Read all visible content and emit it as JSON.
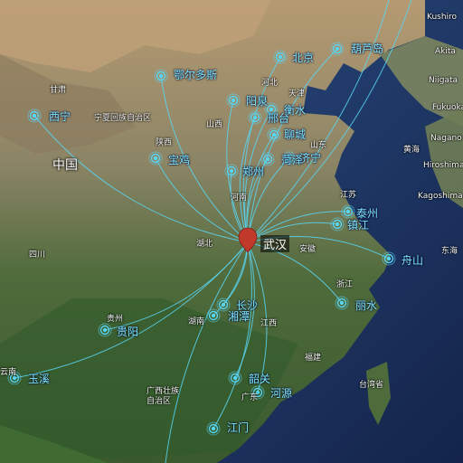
{
  "hub": {
    "name": "武汉",
    "color": "#c0392b"
  },
  "line_color": "#59d6f5",
  "cities": [
    {
      "name": "西宁"
    },
    {
      "name": "鄂尔多斯"
    },
    {
      "name": "北京"
    },
    {
      "name": "葫芦岛"
    },
    {
      "name": "阳泉"
    },
    {
      "name": "衡水"
    },
    {
      "name": "邢台"
    },
    {
      "name": "聊城"
    },
    {
      "name": "济宁"
    },
    {
      "name": "菏泽"
    },
    {
      "name": "郑州"
    },
    {
      "name": "宝鸡"
    },
    {
      "name": "泰州"
    },
    {
      "name": "镇江"
    },
    {
      "name": "舟山"
    },
    {
      "name": "丽水"
    },
    {
      "name": "长沙"
    },
    {
      "name": "湘潭"
    },
    {
      "name": "贵阳"
    },
    {
      "name": "玉溪"
    },
    {
      "name": "韶关"
    },
    {
      "name": "河源"
    },
    {
      "name": "江门"
    }
  ],
  "base_labels": {
    "country": "中国",
    "provinces": [
      "湖北",
      "四川",
      "贵州",
      "湖南",
      "江西",
      "福建",
      "浙江",
      "安徽",
      "河南",
      "山西",
      "陕西",
      "山东",
      "江苏",
      "云南",
      "广东",
      "广西壮族自治区",
      "宁夏回族自治区",
      "甘肃",
      "天津",
      "河北",
      "台湾省"
    ],
    "seas": [
      "黄海",
      "东海"
    ],
    "places": [
      "Kushiro",
      "Akita",
      "Niigata",
      "Fukuoka",
      "Nagano",
      "Hiroshima",
      "Kagoshima"
    ]
  }
}
